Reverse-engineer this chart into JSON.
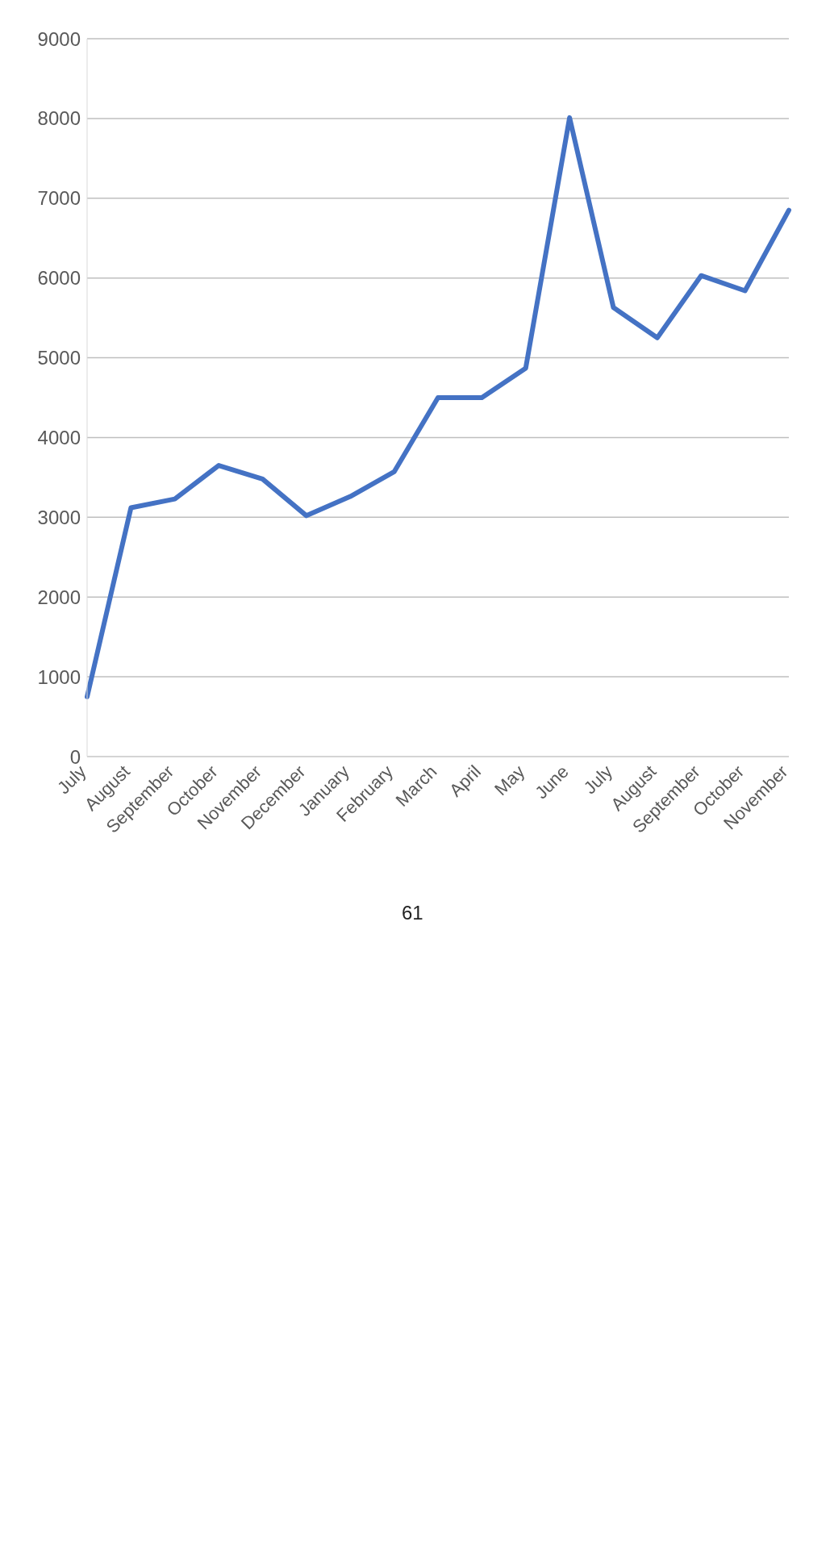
{
  "chart_data": {
    "type": "line",
    "categories": [
      "July",
      "August",
      "September",
      "October",
      "November",
      "December",
      "January",
      "February",
      "March",
      "April",
      "May",
      "June",
      "July",
      "August",
      "September",
      "October",
      "November"
    ],
    "series": [
      {
        "color": "#4472c4",
        "values": [
          750,
          3120,
          3230,
          3650,
          3480,
          3020,
          3260,
          3570,
          4500,
          4500,
          4870,
          8010,
          5630,
          5250,
          6030,
          5840,
          6850
        ]
      }
    ],
    "ylim": [
      0,
      9000
    ],
    "yticks": [
      0,
      1000,
      2000,
      3000,
      4000,
      5000,
      6000,
      7000,
      8000,
      9000
    ],
    "grid": "y",
    "marker": "none",
    "line_style": "solid",
    "annotations": [
      "61"
    ]
  }
}
